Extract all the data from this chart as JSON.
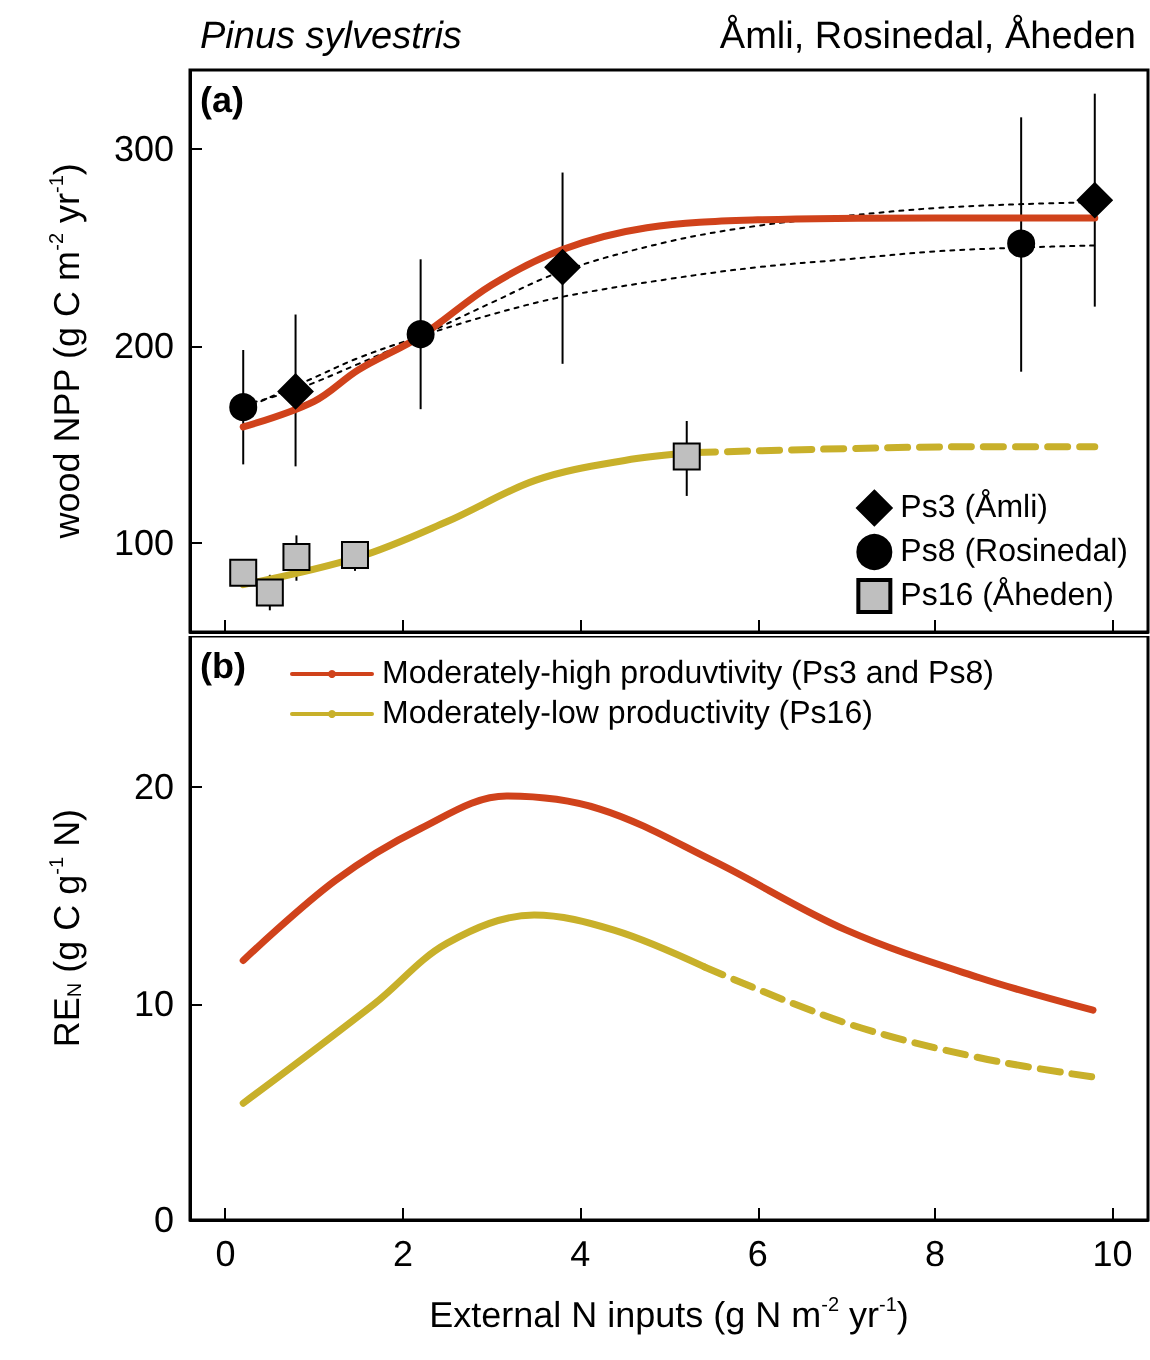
{
  "chart_data": [
    {
      "type": "scatter",
      "title": "Pinus sylvestris",
      "subtitle": "Åmli, Rosinedal, Åheden",
      "ylabel": "wood NPP (g C m$^{-2}$ yr$^{-1}$)",
      "annotations": [
        "(a)"
      ],
      "xlim": [
        -0.4,
        10.4
      ],
      "xticks": [
        0,
        2,
        4,
        6,
        8,
        10
      ],
      "ylim": [
        55,
        340
      ],
      "yticks": [
        100,
        200,
        300
      ],
      "tick_labels": "y",
      "legend": "bottom right",
      "series": [
        {
          "type": "line",
          "color": "#000000",
          "marker": "none",
          "line_style": "dotted",
          "x": [
            0.2,
            0.8,
            1.5,
            2.2,
            3,
            3.8,
            5,
            6,
            7,
            8,
            9,
            9.8
          ],
          "values": [
            170,
            178,
            191,
            205,
            222,
            238,
            253,
            261,
            266,
            270,
            272,
            273
          ]
        },
        {
          "type": "line",
          "color": "#000000",
          "marker": "none",
          "line_style": "dotted",
          "x": [
            0.2,
            1,
            1.5,
            2.2,
            3,
            3.8,
            5,
            6,
            7,
            8,
            9,
            9.8
          ],
          "values": [
            168,
            184,
            194,
            205,
            216,
            225,
            234,
            240,
            244,
            248,
            250,
            251
          ]
        },
        {
          "type": "line",
          "color": "#d0421b",
          "marker": "none",
          "line_style": "solid",
          "x": [
            0.2,
            1,
            1.5,
            2.2,
            3,
            3.8,
            4.75,
            6,
            8,
            9.8
          ],
          "values": [
            159,
            172,
            188,
            205,
            231,
            249,
            260,
            264,
            265,
            265
          ]
        },
        {
          "type": "line",
          "color": "#c8b02a",
          "marker": "none",
          "line_style": "solid",
          "x": [
            0.2,
            1.5,
            2.5,
            3.5,
            4.5,
            5.3
          ],
          "values": [
            79,
            93,
            111,
            132,
            142,
            146
          ]
        },
        {
          "type": "line",
          "color": "#c8b02a",
          "marker": "none",
          "line_style": "dashed",
          "x": [
            5.3,
            7,
            8.5,
            9.8
          ],
          "values": [
            146,
            148,
            149,
            149
          ]
        },
        {
          "type": "scatter",
          "name": "Ps3 (Åmli)",
          "color": "#000000",
          "marker": "diamond",
          "x": [
            0.79,
            3.8,
            9.8
          ],
          "values": [
            177,
            240,
            274
          ],
          "errors": [
            [
              139,
              216
            ],
            [
              191,
              288
            ],
            [
              220,
              328
            ]
          ]
        },
        {
          "type": "scatter",
          "name": "Ps8 (Rosinedal)",
          "color": "#000000",
          "marker": "circle",
          "x": [
            0.2,
            2.2,
            8.97
          ],
          "values": [
            169,
            206,
            252
          ],
          "errors": [
            [
              140,
              198
            ],
            [
              168,
              244
            ],
            [
              187,
              316
            ]
          ]
        },
        {
          "type": "scatter",
          "name": "Ps16 (Åheden)",
          "color": "#bfbfbf",
          "marker": "square",
          "x": [
            0.2,
            0.5,
            0.8,
            1.46,
            5.2
          ],
          "values": [
            85,
            75,
            93,
            94,
            144
          ],
          "errors": [
            null,
            [
              66,
              84
            ],
            [
              81,
              104
            ],
            [
              86,
              101
            ],
            [
              124,
              162
            ]
          ]
        }
      ]
    },
    {
      "type": "line",
      "xlabel": "External N inputs (g N m$^{-2}$ yr$^{-1}$)",
      "ylabel": "RE$_{N}$ (g C g$^{-1}$ N)",
      "annotations": [
        "(b)"
      ],
      "xlim": [
        -0.4,
        10.4
      ],
      "xticks": [
        0,
        2,
        4,
        6,
        8,
        10
      ],
      "ylim": [
        0,
        27
      ],
      "yticks": [
        0,
        10,
        20
      ],
      "legend": "top left",
      "marker": "none",
      "series": [
        {
          "name": "Moderately-high produvtivity (Ps3 and Ps8)",
          "color": "#d0421b",
          "line_style": "solid",
          "x": [
            0.2,
            1.24,
            2.2,
            3.17,
            4.22,
            5.5,
            7,
            8.5,
            9.78
          ],
          "values": [
            12.0,
            15.7,
            18.1,
            19.6,
            19.0,
            16.6,
            13.4,
            11.2,
            9.7
          ]
        },
        {
          "name": "Moderately-low productivity (Ps16)",
          "color": "#c8b02a",
          "line_style": "solid",
          "x": [
            0.2,
            1.68,
            2.5,
            3.48,
            4.38,
            5.4
          ],
          "values": [
            5.4,
            10.0,
            12.8,
            14.1,
            13.4,
            11.7
          ]
        },
        {
          "color": "#c8b02a",
          "line_style": "dashed",
          "x": [
            5.4,
            7,
            8.5,
            9.8
          ],
          "values": [
            11.7,
            9.1,
            7.5,
            6.6
          ]
        }
      ]
    }
  ]
}
